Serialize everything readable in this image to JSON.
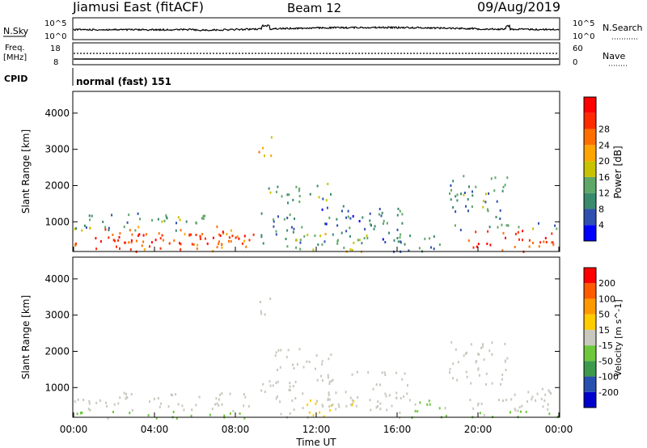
{
  "header": {
    "station": "Jiamusi East (fitACF)",
    "beam": "Beam 12",
    "date": "09/Aug/2019"
  },
  "nsky_panel": {
    "left_label": "N.Sky",
    "left_ticks": [
      "10^5",
      "10^0"
    ],
    "right_label": "N.Search",
    "right_ticks": [
      "10^5",
      "10^0"
    ]
  },
  "freq_panel": {
    "left_label_1": "Freq.",
    "left_label_2": "[MHz]",
    "left_ticks": [
      "18",
      "8"
    ],
    "right_label": "Nave",
    "right_ticks": [
      "60",
      "0"
    ]
  },
  "cpid_panel": {
    "label": "CPID",
    "text": "normal (fast) 151"
  },
  "colors": {
    "power_scale": [
      "#0000ff",
      "#3050b0",
      "#3a8a6e",
      "#5fa868",
      "#c7c300",
      "#ffa500",
      "#ff6f00",
      "#ff2a00",
      "#ff0000"
    ],
    "velocity_scale": [
      "#0000cc",
      "#2850b0",
      "#3d9a4c",
      "#6ec83c",
      "#c8c8be",
      "#ffcc00",
      "#ff9900",
      "#ff5a00",
      "#ff0000"
    ]
  },
  "chart_data": [
    {
      "type": "heatmap",
      "name": "power",
      "ylabel": "Slant Range [km]",
      "yticks": [
        "1000",
        "2000",
        "3000",
        "4000"
      ],
      "ylim": [
        180,
        4600
      ],
      "xlim_hours": [
        0,
        24
      ],
      "colorbar_label": "Power [dB]",
      "colorbar_ticks": [
        "4",
        "8",
        "12",
        "16",
        "20",
        "24",
        "28"
      ],
      "colorbar_range": [
        0,
        32
      ],
      "blobs": [
        {
          "t0": 0,
          "t1": 8.9,
          "r0": 200,
          "r1": 900,
          "v": 24
        },
        {
          "t0": 1,
          "t1": 8.5,
          "r0": 420,
          "r1": 700,
          "v": 29
        },
        {
          "t0": 0,
          "t1": 6.5,
          "r0": 780,
          "r1": 1300,
          "v": 11
        },
        {
          "t0": 9.1,
          "t1": 9.8,
          "r0": 2800,
          "r1": 3500,
          "v": 19
        },
        {
          "t0": 9.6,
          "t1": 12.8,
          "r0": 1500,
          "r1": 2100,
          "v": 11
        },
        {
          "t0": 9.2,
          "t1": 11.3,
          "r0": 300,
          "r1": 1300,
          "v": 10
        },
        {
          "t0": 10.5,
          "t1": 14.5,
          "r0": 200,
          "r1": 700,
          "v": 14
        },
        {
          "t0": 12,
          "t1": 16.5,
          "r0": 400,
          "r1": 1500,
          "v": 8
        },
        {
          "t0": 15.8,
          "t1": 18.5,
          "r0": 200,
          "r1": 700,
          "v": 9
        },
        {
          "t0": 18.5,
          "t1": 21.5,
          "r0": 1100,
          "r1": 2300,
          "v": 10
        },
        {
          "t0": 18.5,
          "t1": 24,
          "r0": 800,
          "r1": 1000,
          "v": 10
        },
        {
          "t0": 19.5,
          "t1": 24,
          "r0": 200,
          "r1": 800,
          "v": 27
        }
      ]
    },
    {
      "type": "heatmap",
      "name": "velocity",
      "ylabel": "Slant Range [km]",
      "yticks": [
        "1000",
        "2000",
        "3000",
        "4000"
      ],
      "ylim": [
        180,
        4600
      ],
      "xlim_hours": [
        0,
        24
      ],
      "xticks": [
        "00:00",
        "04:00",
        "08:00",
        "12:00",
        "16:00",
        "20:00",
        "00:00"
      ],
      "xlabel": "Time UT",
      "colorbar_label": "Velocity [m s^-1]",
      "colorbar_ticks": [
        "200",
        "100",
        "50",
        "15",
        "-15",
        "-50",
        "-100",
        "-200"
      ],
      "colorbar_range": [
        -250,
        250
      ],
      "blobs": [
        {
          "t0": 0,
          "t1": 8.9,
          "r0": 380,
          "r1": 900,
          "v": 0
        },
        {
          "t0": 0,
          "t1": 8.9,
          "r0": 180,
          "r1": 380,
          "v": -40
        },
        {
          "t0": 9.1,
          "t1": 9.8,
          "r0": 2800,
          "r1": 3500,
          "v": 0
        },
        {
          "t0": 9.6,
          "t1": 12.8,
          "r0": 1500,
          "r1": 2100,
          "v": 0
        },
        {
          "t0": 9.2,
          "t1": 11.3,
          "r0": 300,
          "r1": 1300,
          "v": 0
        },
        {
          "t0": 10.5,
          "t1": 14.5,
          "r0": 200,
          "r1": 700,
          "v": 30
        },
        {
          "t0": 12,
          "t1": 16.5,
          "r0": 400,
          "r1": 1500,
          "v": 0
        },
        {
          "t0": 15.8,
          "t1": 18.5,
          "r0": 200,
          "r1": 700,
          "v": -30
        },
        {
          "t0": 18.5,
          "t1": 21.5,
          "r0": 1100,
          "r1": 2300,
          "v": 0
        },
        {
          "t0": 19.5,
          "t1": 24,
          "r0": 380,
          "r1": 1000,
          "v": 0
        },
        {
          "t0": 19.5,
          "t1": 24,
          "r0": 180,
          "r1": 380,
          "v": -40
        }
      ]
    }
  ]
}
